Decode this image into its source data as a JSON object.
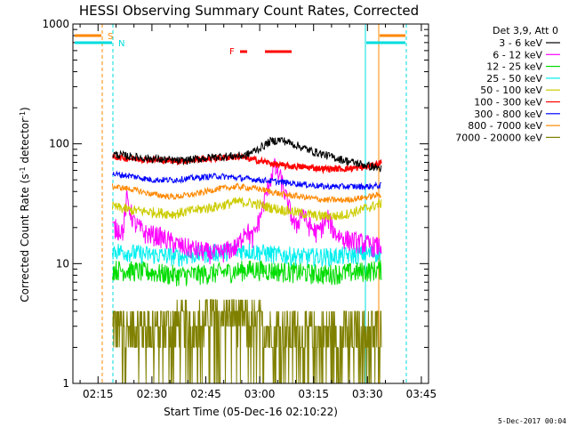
{
  "chart_data": {
    "type": "line",
    "title": "HESSI Observing Summary Count Rates, Corrected",
    "xlabel": "Start Time (05-Dec-16 02:10:22)",
    "ylabel_parts": [
      "Corrected Count Rate (s",
      "-1",
      " detector",
      "-1",
      ")"
    ],
    "yscale": "log",
    "ylim": [
      1,
      1000
    ],
    "xlim_minutes": [
      0,
      99
    ],
    "x_ticks": [
      {
        "t": 7,
        "label": "02:15"
      },
      {
        "t": 22,
        "label": "02:30"
      },
      {
        "t": 37,
        "label": "02:45"
      },
      {
        "t": 52,
        "label": "03:00"
      },
      {
        "t": 67,
        "label": "03:15"
      },
      {
        "t": 82,
        "label": "03:30"
      },
      {
        "t": 97,
        "label": "03:45"
      }
    ],
    "y_ticks": [
      {
        "v": 1,
        "label": "1"
      },
      {
        "v": 10,
        "label": "10"
      },
      {
        "v": 100,
        "label": "100"
      },
      {
        "v": 1000,
        "label": "1000"
      }
    ],
    "legend_title": "Det 3,9, Att 0",
    "series": [
      {
        "name": "3 - 6 keV",
        "color": "#000000",
        "points": [
          [
            11,
            82
          ],
          [
            20,
            76
          ],
          [
            30,
            72
          ],
          [
            40,
            78
          ],
          [
            48,
            80
          ],
          [
            52,
            92
          ],
          [
            55,
            105
          ],
          [
            58,
            108
          ],
          [
            62,
            98
          ],
          [
            66,
            88
          ],
          [
            72,
            78
          ],
          [
            78,
            70
          ],
          [
            84,
            64
          ],
          [
            86,
            62
          ]
        ]
      },
      {
        "name": "6 - 12 keV",
        "color": "#ff00ff",
        "points": [
          [
            11,
            20
          ],
          [
            14,
            19
          ],
          [
            15,
            35
          ],
          [
            17,
            22
          ],
          [
            20,
            18
          ],
          [
            24,
            17
          ],
          [
            30,
            14
          ],
          [
            40,
            12
          ],
          [
            46,
            14
          ],
          [
            48,
            20
          ],
          [
            50,
            16
          ],
          [
            52,
            24
          ],
          [
            54,
            40
          ],
          [
            56,
            65
          ],
          [
            58,
            50
          ],
          [
            60,
            30
          ],
          [
            62,
            20
          ],
          [
            64,
            28
          ],
          [
            65,
            22
          ],
          [
            68,
            18
          ],
          [
            71,
            24
          ],
          [
            73,
            18
          ],
          [
            76,
            16
          ],
          [
            80,
            15
          ],
          [
            84,
            14
          ],
          [
            86,
            14
          ]
        ]
      },
      {
        "name": "12 - 25 keV",
        "color": "#00dd00",
        "points": [
          [
            11,
            9
          ],
          [
            20,
            8.6
          ],
          [
            30,
            8
          ],
          [
            40,
            8.4
          ],
          [
            50,
            9
          ],
          [
            60,
            8.6
          ],
          [
            70,
            8.2
          ],
          [
            80,
            8.6
          ],
          [
            86,
            9
          ]
        ]
      },
      {
        "name": "25 - 50 keV",
        "color": "#00eeee",
        "points": [
          [
            11,
            13
          ],
          [
            20,
            12
          ],
          [
            30,
            11.5
          ],
          [
            40,
            12.5
          ],
          [
            48,
            13
          ],
          [
            56,
            12
          ],
          [
            64,
            11.5
          ],
          [
            72,
            11.5
          ],
          [
            80,
            12
          ],
          [
            86,
            12.5
          ]
        ]
      },
      {
        "name": "50 - 100 keV",
        "color": "#cccc00",
        "points": [
          [
            11,
            30
          ],
          [
            16,
            28
          ],
          [
            22,
            27
          ],
          [
            28,
            26
          ],
          [
            34,
            28
          ],
          [
            40,
            30
          ],
          [
            46,
            33
          ],
          [
            50,
            32
          ],
          [
            56,
            29
          ],
          [
            62,
            27
          ],
          [
            68,
            25
          ],
          [
            74,
            25
          ],
          [
            80,
            28
          ],
          [
            86,
            32
          ]
        ]
      },
      {
        "name": "100 - 300 keV",
        "color": "#ff0000",
        "points": [
          [
            11,
            78
          ],
          [
            20,
            74
          ],
          [
            30,
            72
          ],
          [
            40,
            76
          ],
          [
            46,
            78
          ],
          [
            52,
            72
          ],
          [
            58,
            66
          ],
          [
            64,
            64
          ],
          [
            70,
            62
          ],
          [
            76,
            62
          ],
          [
            82,
            64
          ],
          [
            86,
            70
          ]
        ]
      },
      {
        "name": "300 - 800 keV",
        "color": "#0000ff",
        "points": [
          [
            11,
            56
          ],
          [
            16,
            54
          ],
          [
            22,
            50
          ],
          [
            28,
            50
          ],
          [
            34,
            52
          ],
          [
            40,
            54
          ],
          [
            46,
            52
          ],
          [
            52,
            50
          ],
          [
            58,
            48
          ],
          [
            64,
            46
          ],
          [
            70,
            44
          ],
          [
            76,
            44
          ],
          [
            82,
            44
          ],
          [
            86,
            45
          ]
        ]
      },
      {
        "name": "800 - 7000 keV",
        "color": "#ff8800",
        "points": [
          [
            11,
            44
          ],
          [
            16,
            42
          ],
          [
            22,
            38
          ],
          [
            28,
            36
          ],
          [
            34,
            38
          ],
          [
            40,
            42
          ],
          [
            46,
            44
          ],
          [
            52,
            42
          ],
          [
            58,
            38
          ],
          [
            64,
            36
          ],
          [
            70,
            34
          ],
          [
            76,
            34
          ],
          [
            82,
            36
          ],
          [
            86,
            38
          ]
        ]
      },
      {
        "name": "7000 - 20000 keV",
        "color": "#808000",
        "points": [
          [
            11,
            3
          ],
          [
            20,
            3
          ],
          [
            30,
            3.2
          ],
          [
            36,
            3.5
          ],
          [
            40,
            4
          ],
          [
            44,
            4
          ],
          [
            48,
            3.5
          ],
          [
            54,
            3
          ],
          [
            60,
            2.7
          ],
          [
            70,
            2.6
          ],
          [
            80,
            2.8
          ],
          [
            86,
            3
          ]
        ]
      }
    ],
    "saa_markers": [
      {
        "label": "S",
        "color": "#ff8800",
        "t": 7
      },
      {
        "label": "N",
        "color": "#00dddd",
        "t": 10
      }
    ],
    "flare_marker": {
      "label": "F",
      "color": "#ff0000"
    },
    "footer_date": "5-Dec-2017 00:04"
  }
}
